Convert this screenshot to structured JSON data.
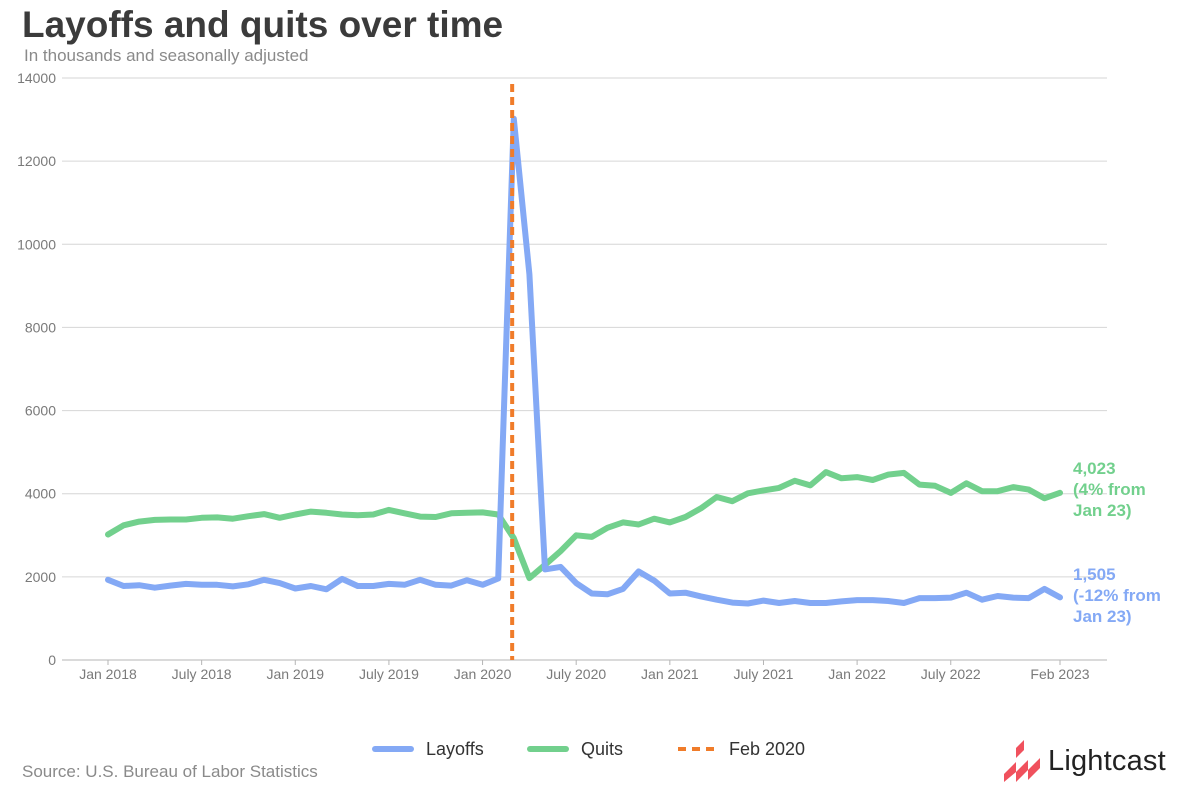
{
  "title": "Layoffs and quits over time",
  "subtitle": "In thousands and seasonally adjusted",
  "source": "Source: U.S. Bureau of Labor Statistics",
  "brand": {
    "name": "Lightcast",
    "logo_icon": "lightcast-logo-icon",
    "color": "#f0515d"
  },
  "chart_data": {
    "type": "line",
    "ylim": [
      0,
      14000
    ],
    "yticks": [
      0,
      2000,
      4000,
      6000,
      8000,
      10000,
      12000,
      14000
    ],
    "xticks": [
      "Jan 2018",
      "July 2018",
      "Jan 2019",
      "July 2019",
      "Jan 2020",
      "July 2020",
      "Jan 2021",
      "July 2021",
      "Jan 2022",
      "July 2022",
      "Feb 2023"
    ],
    "x": [
      "2018-01",
      "2018-02",
      "2018-03",
      "2018-04",
      "2018-05",
      "2018-06",
      "2018-07",
      "2018-08",
      "2018-09",
      "2018-10",
      "2018-11",
      "2018-12",
      "2019-01",
      "2019-02",
      "2019-03",
      "2019-04",
      "2019-05",
      "2019-06",
      "2019-07",
      "2019-08",
      "2019-09",
      "2019-10",
      "2019-11",
      "2019-12",
      "2020-01",
      "2020-02",
      "2020-03",
      "2020-04",
      "2020-05",
      "2020-06",
      "2020-07",
      "2020-08",
      "2020-09",
      "2020-10",
      "2020-11",
      "2020-12",
      "2021-01",
      "2021-02",
      "2021-03",
      "2021-04",
      "2021-05",
      "2021-06",
      "2021-07",
      "2021-08",
      "2021-09",
      "2021-10",
      "2021-11",
      "2021-12",
      "2022-01",
      "2022-02",
      "2022-03",
      "2022-04",
      "2022-05",
      "2022-06",
      "2022-07",
      "2022-08",
      "2022-09",
      "2022-10",
      "2022-11",
      "2022-12",
      "2023-01",
      "2023-02"
    ],
    "grid": true,
    "legend_position": "bottom",
    "series": [
      {
        "name": "Layoffs",
        "color": "#84a9f5",
        "values": [
          1930,
          1780,
          1800,
          1740,
          1790,
          1830,
          1810,
          1810,
          1770,
          1820,
          1930,
          1850,
          1720,
          1780,
          1700,
          1950,
          1780,
          1780,
          1830,
          1810,
          1930,
          1810,
          1790,
          1920,
          1810,
          1960,
          13020,
          9280,
          2180,
          2240,
          1850,
          1600,
          1580,
          1710,
          2130,
          1910,
          1600,
          1620,
          1530,
          1450,
          1380,
          1360,
          1430,
          1370,
          1420,
          1370,
          1370,
          1410,
          1440,
          1440,
          1420,
          1370,
          1490,
          1490,
          1500,
          1620,
          1450,
          1540,
          1500,
          1490,
          1710,
          1505
        ],
        "end_label": [
          "1,505",
          "(-12% from",
          "Jan 23)"
        ]
      },
      {
        "name": "Quits",
        "color": "#72d08d",
        "values": [
          3020,
          3240,
          3330,
          3370,
          3380,
          3380,
          3420,
          3430,
          3400,
          3460,
          3510,
          3420,
          3500,
          3570,
          3540,
          3500,
          3480,
          3500,
          3610,
          3530,
          3450,
          3440,
          3530,
          3540,
          3550,
          3500,
          2930,
          1970,
          2290,
          2620,
          3000,
          2960,
          3180,
          3310,
          3260,
          3400,
          3310,
          3440,
          3650,
          3920,
          3820,
          4010,
          4080,
          4140,
          4310,
          4200,
          4520,
          4370,
          4400,
          4330,
          4460,
          4500,
          4220,
          4190,
          4020,
          4250,
          4060,
          4060,
          4160,
          4100,
          3890,
          4023
        ],
        "end_label": [
          "4,023",
          "(4% from",
          "Jan 23)"
        ]
      }
    ],
    "marker": {
      "name": "Feb 2020",
      "x": "2020-02",
      "color": "#f07c2a",
      "style": "dashed"
    }
  }
}
